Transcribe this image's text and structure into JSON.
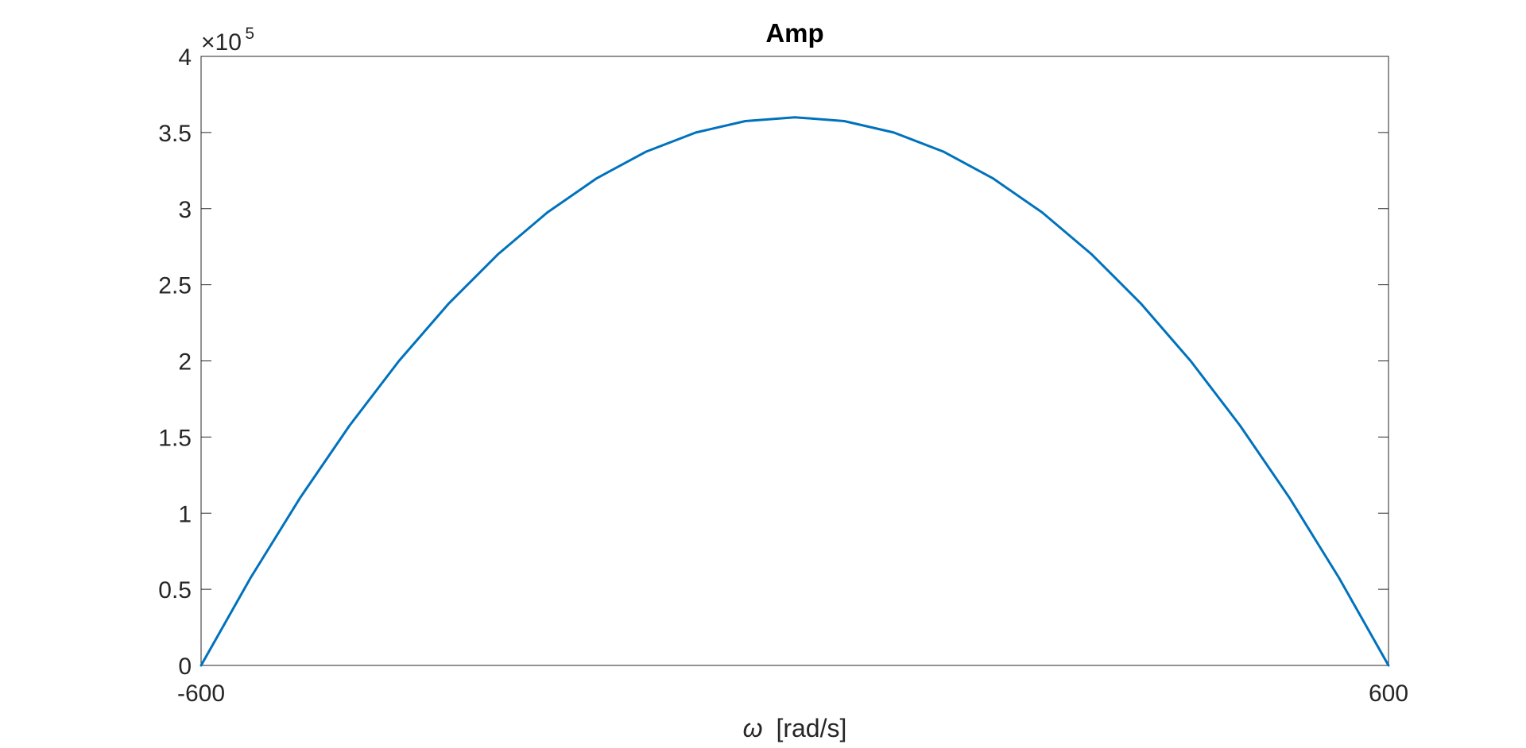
{
  "chart_data": {
    "type": "line",
    "title": "Amp",
    "xlabel_symbol": "ω",
    "xlabel_units": "[rad/s]",
    "ylabel": "",
    "xlim": [
      -600,
      600
    ],
    "ylim": [
      0,
      400000
    ],
    "y_exponent_prefix": "×10",
    "y_exponent_power": "5",
    "x_ticks": [
      {
        "value": -600,
        "label": "-600"
      },
      {
        "value": 600,
        "label": "600"
      }
    ],
    "y_ticks": [
      {
        "value": 0,
        "label": "0"
      },
      {
        "value": 50000,
        "label": "0.5"
      },
      {
        "value": 100000,
        "label": "1"
      },
      {
        "value": 150000,
        "label": "1.5"
      },
      {
        "value": 200000,
        "label": "2"
      },
      {
        "value": 250000,
        "label": "2.5"
      },
      {
        "value": 300000,
        "label": "3"
      },
      {
        "value": 350000,
        "label": "3.5"
      },
      {
        "value": 400000,
        "label": "4"
      }
    ],
    "grid": false,
    "box": true,
    "series": [
      {
        "color": "#0072BD",
        "x": [
          -600,
          -550,
          -500,
          -450,
          -400,
          -350,
          -300,
          -250,
          -200,
          -150,
          -100,
          -50,
          0,
          50,
          100,
          150,
          200,
          250,
          300,
          350,
          400,
          450,
          500,
          550,
          600
        ],
        "y": [
          0,
          57500,
          110000,
          157500,
          200000,
          237500,
          270000,
          297500,
          320000,
          337500,
          350000,
          357500,
          360000,
          357500,
          350000,
          337500,
          320000,
          297500,
          270000,
          237500,
          200000,
          157500,
          110000,
          57500,
          0
        ]
      }
    ]
  }
}
